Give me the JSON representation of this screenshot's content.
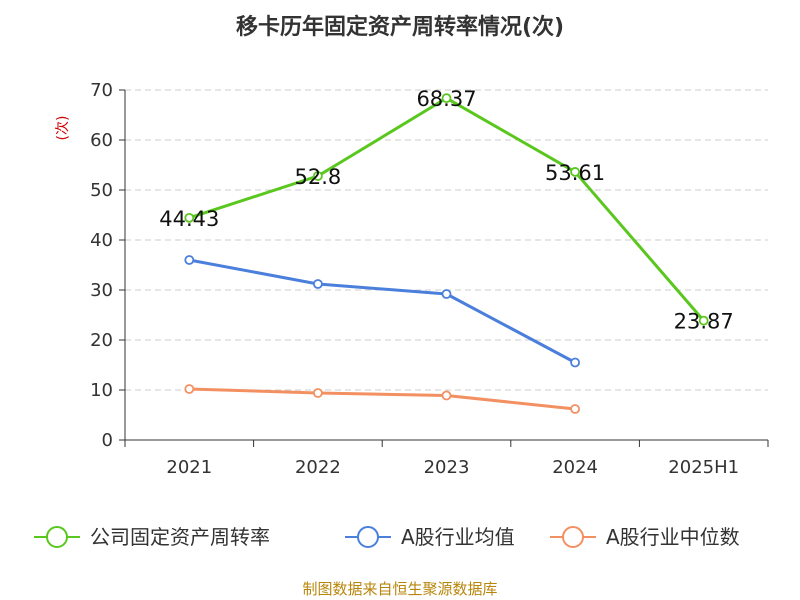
{
  "colors": {
    "company": "#5ac71e",
    "avg": "#4a7fdb",
    "median": "#f39061",
    "grid": "#cccccc",
    "axis": "#333333",
    "ylabel": "#cc0000",
    "source": "#b8860b"
  },
  "chart_data": {
    "type": "line",
    "title": "移卡历年固定资产周转率情况(次)",
    "ylabel": "(次)",
    "xlabel": "",
    "ylim": [
      0,
      70
    ],
    "yticks": [
      0,
      10,
      20,
      30,
      40,
      50,
      60,
      70
    ],
    "grid": true,
    "legend_position": "bottom",
    "categories": [
      "2021",
      "2022",
      "2023",
      "2024",
      "2025H1"
    ],
    "series": [
      {
        "name": "公司固定资产周转率",
        "color_key": "company",
        "values": [
          44.43,
          52.8,
          68.37,
          53.61,
          23.87
        ],
        "labels": [
          "44.43",
          "52.8",
          "68.37",
          "53.61",
          "23.87"
        ],
        "show_labels": true
      },
      {
        "name": "A股行业均值",
        "color_key": "avg",
        "values": [
          36.0,
          31.2,
          29.2,
          15.5,
          null
        ],
        "show_labels": false
      },
      {
        "name": "A股行业中位数",
        "color_key": "median",
        "values": [
          10.2,
          9.4,
          8.9,
          6.2,
          null
        ],
        "show_labels": false
      }
    ]
  },
  "footer": {
    "source": "制图数据来自恒生聚源数据库"
  }
}
